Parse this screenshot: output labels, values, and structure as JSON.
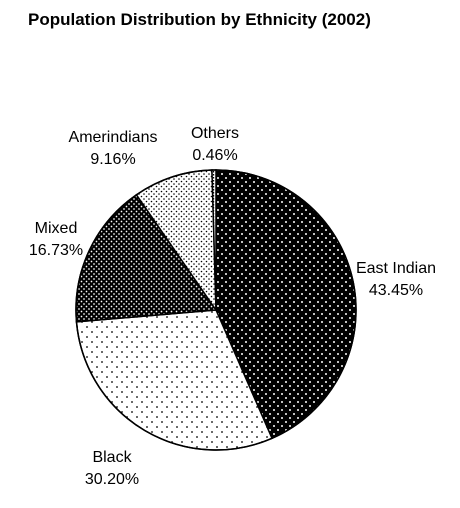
{
  "chart_data": {
    "type": "pie",
    "title": "Population Distribution by Ethnicity (2002)",
    "slices": [
      {
        "label": "East Indian",
        "value": 43.45,
        "value_text": "43.45%",
        "pattern": "white-dots-on-black"
      },
      {
        "label": "Black",
        "value": 30.2,
        "value_text": "30.20%",
        "pattern": "sparse-black-dots"
      },
      {
        "label": "Mixed",
        "value": 16.73,
        "value_text": "16.73%",
        "pattern": "dense-white-dots-on-black"
      },
      {
        "label": "Amerindians",
        "value": 9.16,
        "value_text": "9.16%",
        "pattern": "fine-black-dots"
      },
      {
        "label": "Others",
        "value": 0.46,
        "value_text": "0.46%",
        "pattern": "vertical-stipple"
      }
    ],
    "start_angle": "12 o'clock",
    "direction": "clockwise",
    "legend": "none (labels beside slices)",
    "grid": false
  }
}
